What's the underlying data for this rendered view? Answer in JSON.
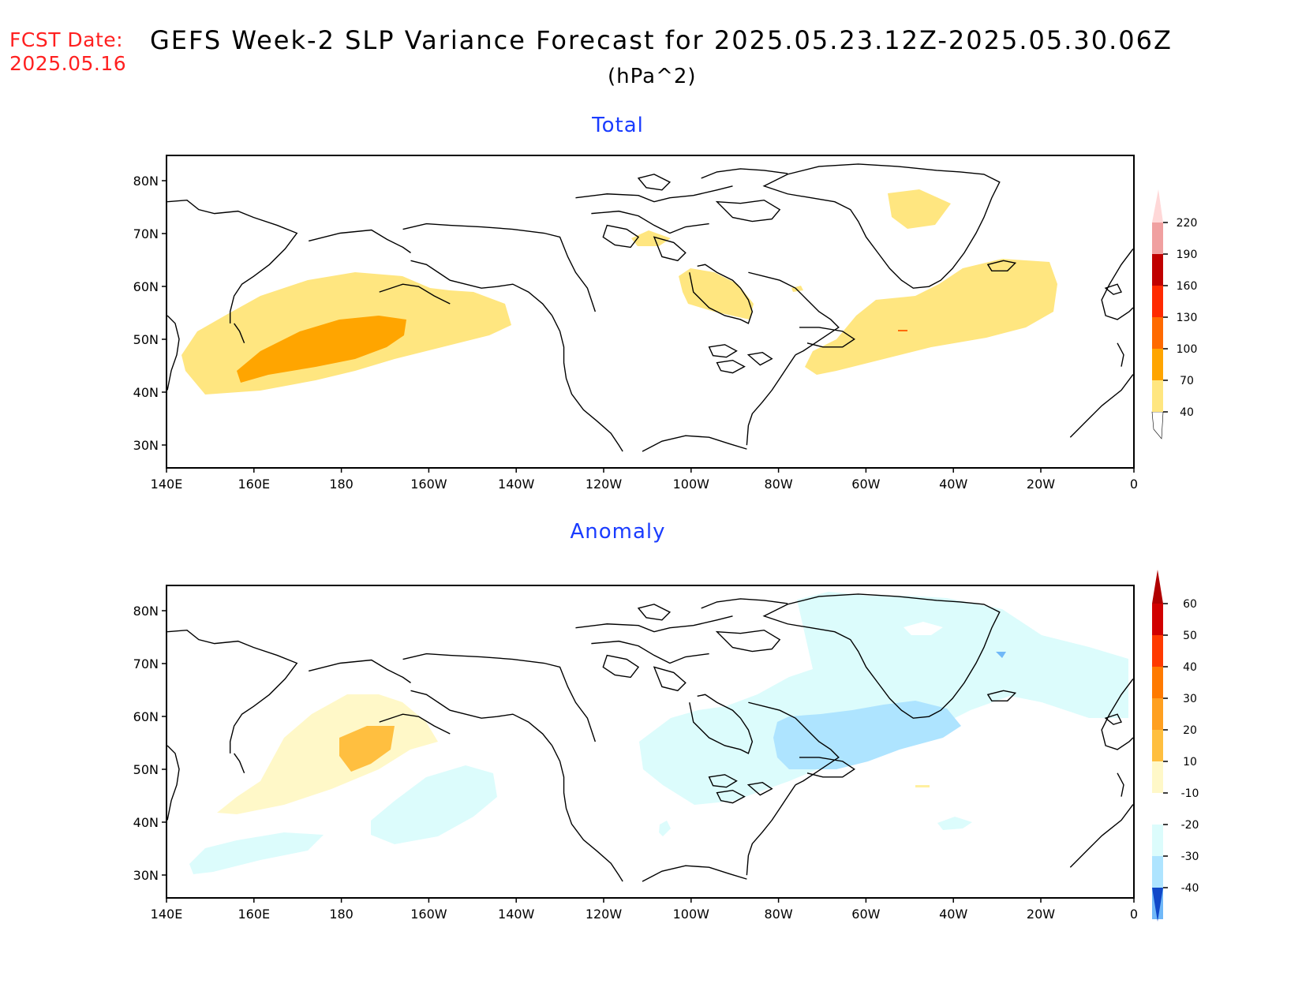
{
  "header": {
    "fcst_label": "FCST Date:",
    "fcst_date": "2025.05.16",
    "title": "GEFS Week-2 SLP Variance Forecast for 2025.05.23.12Z-2025.05.30.06Z",
    "units": "(hPa^2)"
  },
  "axes": {
    "lat_ticks": [
      "80N",
      "70N",
      "60N",
      "50N",
      "40N",
      "30N"
    ],
    "lon_ticks": [
      "140E",
      "160E",
      "180",
      "160W",
      "140W",
      "120W",
      "100W",
      "80W",
      "60W",
      "40W",
      "20W",
      "0"
    ]
  },
  "panels": [
    {
      "title": "Total",
      "colorbar": {
        "labels": [
          "40",
          "70",
          "100",
          "130",
          "160",
          "190",
          "220"
        ],
        "colors": [
          "#ffe680",
          "#ffa500",
          "#ff6a00",
          "#ff2a00",
          "#c00000",
          "#f0a0a0",
          "#ffd8d8"
        ]
      }
    },
    {
      "title": "Anomaly",
      "colorbar": {
        "labels": [
          "60",
          "50",
          "40",
          "30",
          "20",
          "10",
          "-10",
          "-20",
          "-30",
          "-40"
        ],
        "colors_top": [
          "#d10000",
          "#ff3a00",
          "#ff7a00",
          "#ffa020",
          "#ffbf40",
          "#fff0a0",
          "#fff8c8"
        ],
        "colors_bottom": [
          "#dcfcfc",
          "#aee4ff",
          "#70b8f8",
          "#2a7ee8",
          "#1048c8"
        ]
      }
    }
  ]
}
